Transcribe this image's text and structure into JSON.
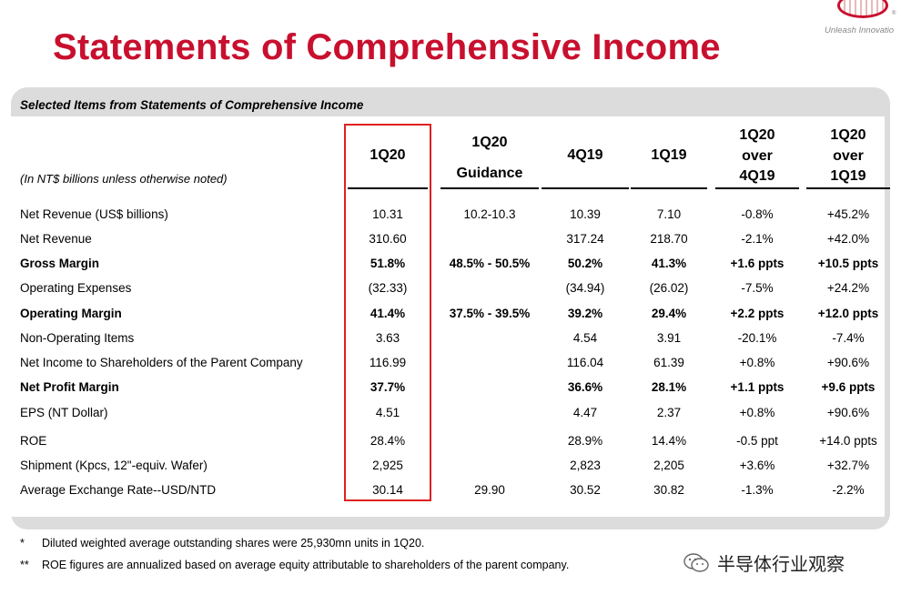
{
  "header": {
    "tagline": "Unleash Innovatio",
    "title": "Statements of Comprehensive Income"
  },
  "table": {
    "section_title": "Selected Items from Statements of Comprehensive Income",
    "units_note": "(In NT$ billions unless otherwise noted)",
    "columns": [
      {
        "lines": [
          "1Q20"
        ]
      },
      {
        "lines": [
          "1Q20",
          "Guidance"
        ]
      },
      {
        "lines": [
          "4Q19"
        ]
      },
      {
        "lines": [
          "1Q19"
        ]
      },
      {
        "lines": [
          "1Q20",
          "over",
          "4Q19"
        ]
      },
      {
        "lines": [
          "1Q20",
          "over",
          "1Q19"
        ]
      }
    ],
    "rows": [
      {
        "label": "Net Revenue (US$ billions)",
        "bold": false,
        "cells": [
          "10.31",
          "10.2-10.3",
          "10.39",
          "7.10",
          "-0.8%",
          "+45.2%"
        ]
      },
      {
        "label": "Net Revenue",
        "bold": false,
        "cells": [
          "310.60",
          "",
          "317.24",
          "218.70",
          "-2.1%",
          "+42.0%"
        ]
      },
      {
        "label": "Gross Margin",
        "bold": true,
        "cells": [
          "51.8%",
          "48.5% - 50.5%",
          "50.2%",
          "41.3%",
          "+1.6 ppts",
          "+10.5 ppts"
        ]
      },
      {
        "label": "Operating Expenses",
        "bold": false,
        "cells": [
          "(32.33)",
          "",
          "(34.94)",
          "(26.02)",
          "-7.5%",
          "+24.2%"
        ]
      },
      {
        "label": "Operating Margin",
        "bold": true,
        "cells": [
          "41.4%",
          "37.5% - 39.5%",
          "39.2%",
          "29.4%",
          "+2.2 ppts",
          "+12.0 ppts"
        ]
      },
      {
        "label": "Non-Operating Items",
        "bold": false,
        "cells": [
          "3.63",
          "",
          "4.54",
          "3.91",
          "-20.1%",
          "-7.4%"
        ]
      },
      {
        "label": "Net Income to Shareholders of the Parent Company",
        "bold": false,
        "cells": [
          "116.99",
          "",
          "116.04",
          "61.39",
          "+0.8%",
          "+90.6%"
        ]
      },
      {
        "label": "Net Profit Margin",
        "bold": true,
        "cells": [
          "37.7%",
          "",
          "36.6%",
          "28.1%",
          "+1.1 ppts",
          "+9.6 ppts"
        ]
      },
      {
        "label": "EPS (NT Dollar)",
        "bold": false,
        "cells": [
          "4.51",
          "",
          "4.47",
          "2.37",
          "+0.8%",
          "+90.6%"
        ]
      },
      {
        "label": "ROE",
        "bold": false,
        "cells": [
          "28.4%",
          "",
          "28.9%",
          "14.4%",
          "-0.5 ppt",
          "+14.0 ppts"
        ]
      },
      {
        "label": "Shipment (Kpcs, 12\"-equiv. Wafer)",
        "bold": false,
        "cells": [
          "2,925",
          "",
          "2,823",
          "2,205",
          "+3.6%",
          "+32.7%"
        ]
      },
      {
        "label": "Average Exchange Rate--USD/NTD",
        "bold": false,
        "cells": [
          "30.14",
          "29.90",
          "30.52",
          "30.82",
          "-1.3%",
          "-2.2%"
        ]
      }
    ]
  },
  "footnotes": [
    {
      "mark": "*",
      "text": "Diluted weighted average outstanding shares were 25,930mn units in 1Q20."
    },
    {
      "mark": "**",
      "text": "ROE figures are annualized based on average equity attributable to shareholders of the parent company."
    }
  ],
  "watermark": {
    "icon": "wechat-icon",
    "text": "半导体行业观察"
  },
  "colors": {
    "title": "#c8102e",
    "highlight": "#e02020",
    "panel": "#dcdcdc"
  }
}
